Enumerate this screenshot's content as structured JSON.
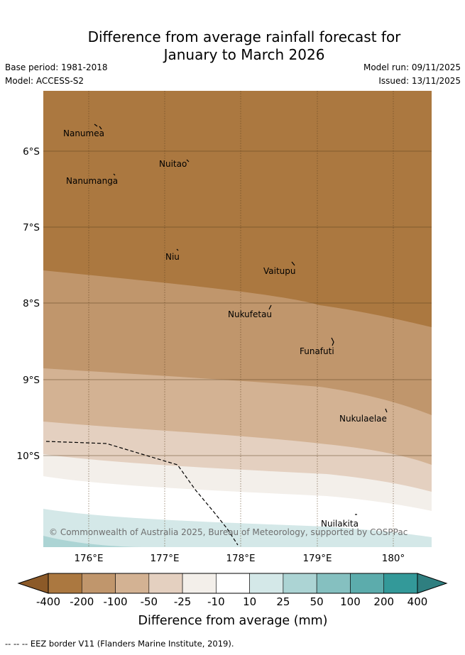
{
  "header": {
    "title_line1": "Difference from average rainfall forecast for",
    "title_line2": "January to March 2026",
    "base_period": "Base period: 1981-2018",
    "model": "Model: ACCESS-S2",
    "model_run": "Model run: 09/11/2025",
    "issued": "Issued: 13/11/2025"
  },
  "map": {
    "lat_ticks": [
      "6°S",
      "7°S",
      "8°S",
      "9°S",
      "10°S"
    ],
    "lon_ticks": [
      "176°E",
      "177°E",
      "178°E",
      "179°E",
      "180°"
    ],
    "copyright": "© Commonwealth of Australia 2025, Bureau of Meteorology, supported by COSPPac",
    "places": [
      {
        "name": "Nanumea"
      },
      {
        "name": "Nuitao"
      },
      {
        "name": "Nanumanga"
      },
      {
        "name": "Niu"
      },
      {
        "name": "Vaitupu"
      },
      {
        "name": "Nukufetau"
      },
      {
        "name": "Funafuti"
      },
      {
        "name": "Nukulaelae"
      },
      {
        "name": "Nuilakita"
      }
    ]
  },
  "colorbar": {
    "title": "Difference from average (mm)",
    "tick_labels": [
      "-400",
      "-200",
      "-100",
      "-50",
      "-25",
      "-10",
      "10",
      "25",
      "50",
      "100",
      "200",
      "400"
    ],
    "bins": [
      {
        "color": "#ab7840"
      },
      {
        "color": "#c0966c"
      },
      {
        "color": "#d3b293"
      },
      {
        "color": "#e4d0c0"
      },
      {
        "color": "#f3efea"
      },
      {
        "color": "#ffffff"
      },
      {
        "color": "#d4e8e8"
      },
      {
        "color": "#acd4d4"
      },
      {
        "color": "#85c0c0"
      },
      {
        "color": "#5cacac"
      },
      {
        "color": "#339999"
      }
    ],
    "under_color": "#8c5a28",
    "over_color": "#2f7f80"
  },
  "footer": {
    "eez_note": "-- -- -- EEZ border V11 (Flanders Marine Institute, 2019)."
  }
}
